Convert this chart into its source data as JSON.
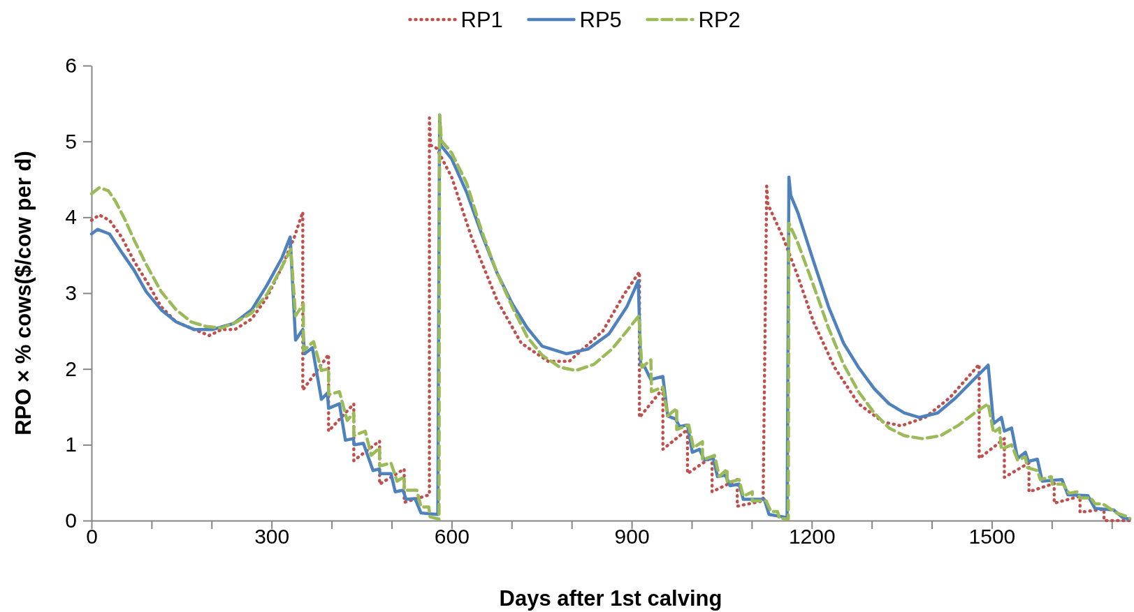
{
  "chart_data": {
    "type": "line",
    "xlabel": "Days after 1st calving",
    "ylabel": "RPO × % cows($/cow per d)",
    "xlim": [
      0,
      1730
    ],
    "ylim": [
      0,
      6
    ],
    "yticks": [
      0,
      1,
      2,
      3,
      4,
      5,
      6
    ],
    "xticks": [
      0,
      {
        "value": 100,
        "label": null
      },
      {
        "value": 200,
        "label": null
      },
      300,
      {
        "value": 400,
        "label": null
      },
      {
        "value": 500,
        "label": null
      },
      600,
      {
        "value": 700,
        "label": null
      },
      {
        "value": 800,
        "label": null
      },
      900,
      {
        "value": 1000,
        "label": null
      },
      {
        "value": 1100,
        "label": null
      },
      1200,
      {
        "value": 1300,
        "label": null
      },
      {
        "value": 1400,
        "label": null
      },
      1500,
      {
        "value": 1600,
        "label": null
      },
      {
        "value": 1700,
        "label": null
      }
    ],
    "grid": false,
    "legend": "top",
    "marker": "none",
    "series": [
      {
        "name": "RP1",
        "color": "#c0504d",
        "line_style": "dotted",
        "x": [
          0,
          13,
          30,
          50,
          71,
          96,
          116,
          141,
          171,
          196,
          217,
          239,
          267,
          292,
          317,
          338,
          352,
          352,
          395,
          395,
          437,
          437,
          480,
          480,
          521,
          521,
          563,
          563,
          565,
          575,
          600,
          633,
          676,
          716,
          761,
          796,
          852,
          887,
          913,
          913,
          952,
          952,
          993,
          993,
          1034,
          1034,
          1076,
          1076,
          1119,
          1125,
          1127,
          1152,
          1177,
          1203,
          1238,
          1278,
          1319,
          1349,
          1389,
          1430,
          1479,
          1479,
          1521,
          1521,
          1562,
          1562,
          1604,
          1604,
          1647,
          1647,
          1687,
          1687,
          1730
        ],
        "values": [
          3.96,
          4.03,
          3.96,
          3.74,
          3.42,
          3.1,
          2.82,
          2.62,
          2.52,
          2.44,
          2.52,
          2.52,
          2.66,
          2.94,
          3.34,
          3.74,
          4.07,
          1.72,
          2.19,
          1.18,
          1.54,
          0.79,
          1.05,
          0.48,
          0.68,
          0.24,
          0.34,
          5.31,
          4.95,
          4.91,
          4.53,
          3.74,
          2.9,
          2.34,
          2.1,
          2.1,
          2.5,
          2.98,
          3.28,
          1.36,
          1.74,
          0.94,
          1.2,
          0.62,
          0.84,
          0.38,
          0.54,
          0.19,
          0.26,
          4.41,
          4.17,
          3.74,
          3.22,
          2.62,
          2.02,
          1.54,
          1.3,
          1.25,
          1.36,
          1.62,
          2.06,
          0.82,
          1.08,
          0.57,
          0.76,
          0.38,
          0.49,
          0.23,
          0.32,
          0.11,
          0.15,
          0,
          0
        ]
      },
      {
        "name": "RP5",
        "color": "#4f81bd",
        "line_style": "solid",
        "x": [
          0,
          10,
          30,
          50,
          71,
          91,
          116,
          141,
          171,
          202,
          237,
          267,
          292,
          317,
          331,
          340,
          352,
          355,
          368,
          383,
          393,
          395,
          413,
          423,
          436,
          438,
          453,
          469,
          479,
          481,
          499,
          506,
          519,
          524,
          539,
          549,
          577,
          580,
          582,
          600,
          625,
          650,
          676,
          701,
          726,
          751,
          791,
          827,
          862,
          892,
          911,
          915,
          922,
          932,
          952,
          960,
          973,
          980,
          993,
          1001,
          1013,
          1021,
          1036,
          1043,
          1056,
          1064,
          1079,
          1086,
          1121,
          1129,
          1159,
          1162,
          1165,
          1177,
          1203,
          1228,
          1253,
          1278,
          1304,
          1329,
          1354,
          1379,
          1410,
          1440,
          1470,
          1494,
          1503,
          1516,
          1521,
          1533,
          1543,
          1556,
          1561,
          1576,
          1584,
          1617,
          1627,
          1660,
          1672,
          1703,
          1718,
          1730
        ],
        "values": [
          3.78,
          3.84,
          3.78,
          3.54,
          3.3,
          3.02,
          2.78,
          2.62,
          2.52,
          2.52,
          2.6,
          2.78,
          3.1,
          3.46,
          3.74,
          2.38,
          2.52,
          2.2,
          2.28,
          1.6,
          1.68,
          1.48,
          1.54,
          1.06,
          1.08,
          1.0,
          1.02,
          0.66,
          0.68,
          0.62,
          0.62,
          0.38,
          0.4,
          0.28,
          0.29,
          0.1,
          0.08,
          5.35,
          4.95,
          4.77,
          4.33,
          3.78,
          3.26,
          2.86,
          2.54,
          2.3,
          2.2,
          2.26,
          2.46,
          2.82,
          3.16,
          2.06,
          2.02,
          1.86,
          1.9,
          1.38,
          1.34,
          1.24,
          1.26,
          0.9,
          0.94,
          0.8,
          0.82,
          0.58,
          0.6,
          0.46,
          0.48,
          0.28,
          0.28,
          0.08,
          0.04,
          4.53,
          4.29,
          4.06,
          3.42,
          2.82,
          2.34,
          2.02,
          1.74,
          1.54,
          1.42,
          1.36,
          1.42,
          1.62,
          1.86,
          2.05,
          1.28,
          1.36,
          1.18,
          1.22,
          0.82,
          0.9,
          0.78,
          0.81,
          0.52,
          0.54,
          0.34,
          0.33,
          0.16,
          0.14,
          0.04,
          0.02
        ]
      },
      {
        "name": "RP2",
        "color": "#9bbb59",
        "line_style": "dashed",
        "x": [
          0,
          13,
          28,
          40,
          55,
          71,
          91,
          116,
          141,
          166,
          191,
          217,
          242,
          267,
          292,
          317,
          332,
          340,
          353,
          353,
          370,
          383,
          395,
          395,
          413,
          426,
          437,
          437,
          456,
          466,
          480,
          480,
          499,
          509,
          521,
          521,
          542,
          549,
          562,
          564,
          579,
          580,
          583,
          600,
          625,
          650,
          676,
          701,
          726,
          751,
          781,
          807,
          837,
          867,
          892,
          912,
          917,
          932,
          933,
          952,
          960,
          975,
          975,
          995,
          1003,
          1018,
          1018,
          1038,
          1046,
          1059,
          1059,
          1079,
          1086,
          1101,
          1101,
          1124,
          1132,
          1143,
          1146,
          1161,
          1162,
          1177,
          1203,
          1228,
          1253,
          1278,
          1304,
          1329,
          1354,
          1384,
          1415,
          1445,
          1475,
          1494,
          1503,
          1513,
          1516,
          1533,
          1543,
          1556,
          1559,
          1576,
          1581,
          1599,
          1601,
          1619,
          1629,
          1642,
          1647,
          1665,
          1672,
          1685,
          1708,
          1723,
          1730
        ],
        "values": [
          4.31,
          4.39,
          4.35,
          4.21,
          3.98,
          3.7,
          3.38,
          3.02,
          2.78,
          2.62,
          2.56,
          2.54,
          2.62,
          2.74,
          2.98,
          3.34,
          3.58,
          2.7,
          2.86,
          2.24,
          2.36,
          1.98,
          2.0,
          1.66,
          1.7,
          1.32,
          1.42,
          1.12,
          1.18,
          0.86,
          0.96,
          0.72,
          0.76,
          0.52,
          0.58,
          0.4,
          0.4,
          0.18,
          0.18,
          0.05,
          0.02,
          5.35,
          5.01,
          4.85,
          4.45,
          3.82,
          3.26,
          2.82,
          2.42,
          2.18,
          2.02,
          1.98,
          2.06,
          2.26,
          2.5,
          2.7,
          2.02,
          2.12,
          1.7,
          1.76,
          1.38,
          1.48,
          1.2,
          1.26,
          0.96,
          1.04,
          0.8,
          0.86,
          0.58,
          0.68,
          0.5,
          0.54,
          0.32,
          0.38,
          0.26,
          0.26,
          0.12,
          0.12,
          0.03,
          0.02,
          3.92,
          3.66,
          3.1,
          2.54,
          2.06,
          1.7,
          1.42,
          1.22,
          1.12,
          1.08,
          1.12,
          1.26,
          1.44,
          1.54,
          1.16,
          1.22,
          0.94,
          1.0,
          0.8,
          0.84,
          0.7,
          0.66,
          0.54,
          0.58,
          0.48,
          0.48,
          0.36,
          0.38,
          0.3,
          0.3,
          0.22,
          0.22,
          0.1,
          0.06,
          0.03
        ]
      }
    ]
  }
}
